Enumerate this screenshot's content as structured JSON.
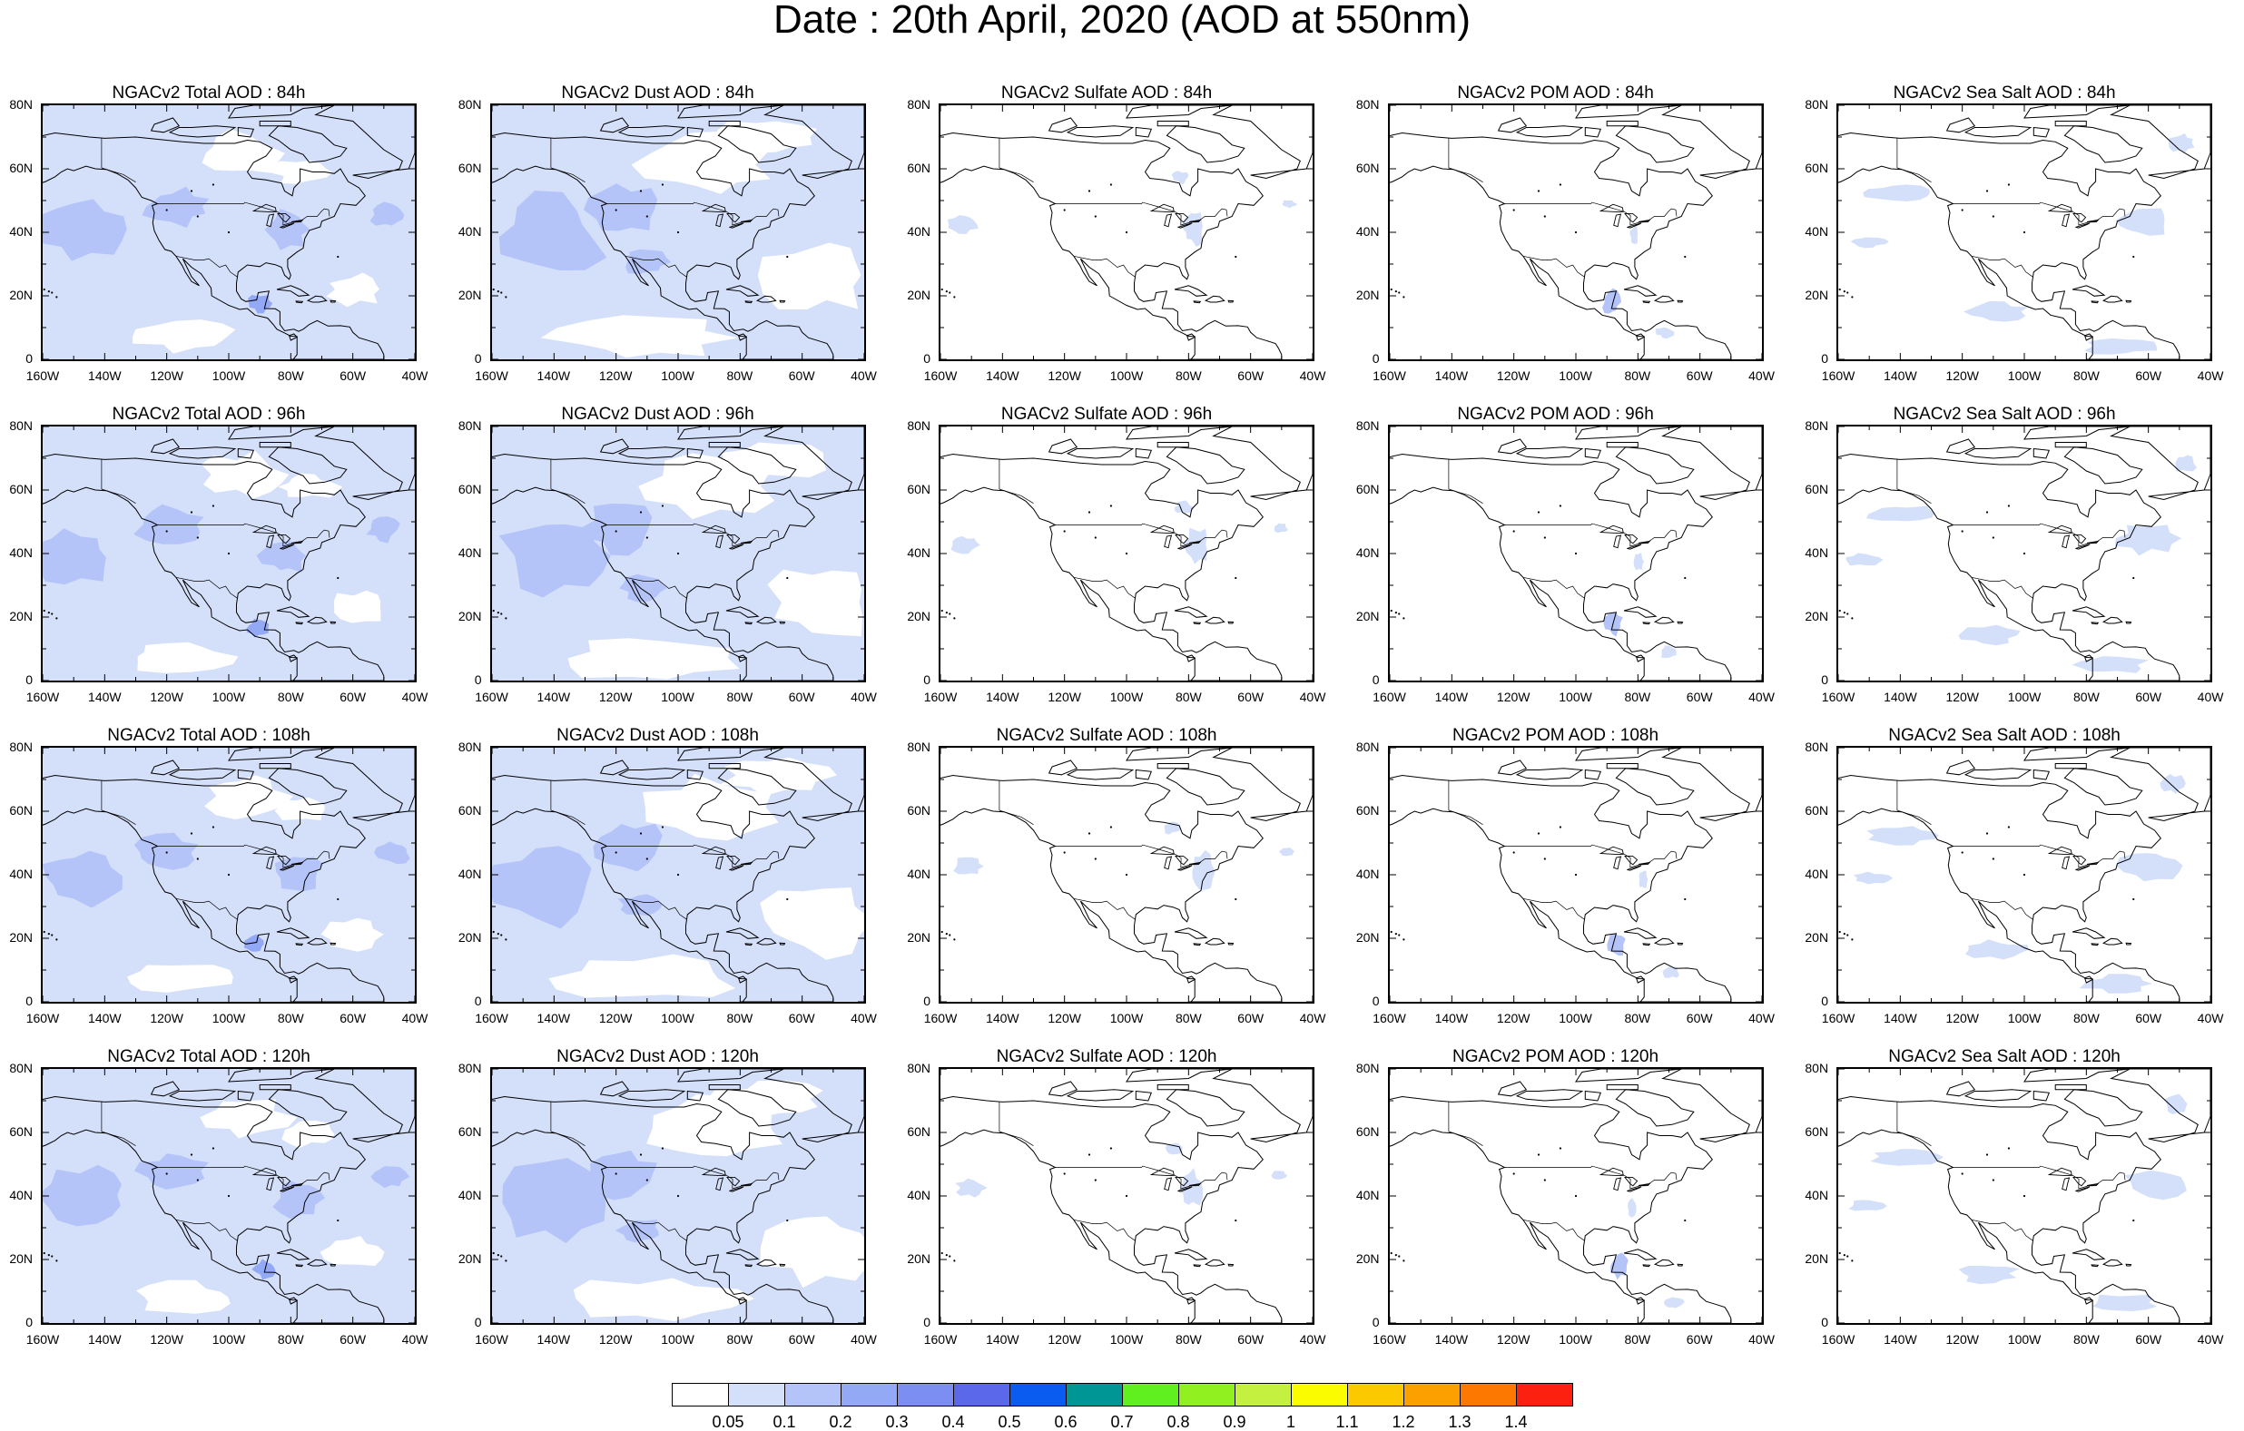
{
  "title": "Date : 20th April, 2020 (AOD at 550nm)",
  "lat_labels": [
    "80N",
    "60N",
    "40N",
    "20N",
    "0"
  ],
  "lon_labels": [
    "160W",
    "140W",
    "120W",
    "100W",
    "80W",
    "60W",
    "40W"
  ],
  "panels": [
    {
      "title": "NGACv2 Total AOD : 84h",
      "species": "total",
      "lead": 84
    },
    {
      "title": "NGACv2 Dust AOD : 84h",
      "species": "dust",
      "lead": 84
    },
    {
      "title": "NGACv2 Sulfate AOD : 84h",
      "species": "sulfate",
      "lead": 84
    },
    {
      "title": "NGACv2 POM AOD : 84h",
      "species": "pom",
      "lead": 84
    },
    {
      "title": "NGACv2 Sea Salt AOD : 84h",
      "species": "seasalt",
      "lead": 84
    },
    {
      "title": "NGACv2 Total AOD : 96h",
      "species": "total",
      "lead": 96
    },
    {
      "title": "NGACv2 Dust AOD : 96h",
      "species": "dust",
      "lead": 96
    },
    {
      "title": "NGACv2 Sulfate AOD : 96h",
      "species": "sulfate",
      "lead": 96
    },
    {
      "title": "NGACv2 POM AOD : 96h",
      "species": "pom",
      "lead": 96
    },
    {
      "title": "NGACv2 Sea Salt AOD : 96h",
      "species": "seasalt",
      "lead": 96
    },
    {
      "title": "NGACv2 Total AOD : 108h",
      "species": "total",
      "lead": 108
    },
    {
      "title": "NGACv2 Dust AOD : 108h",
      "species": "dust",
      "lead": 108
    },
    {
      "title": "NGACv2 Sulfate AOD : 108h",
      "species": "sulfate",
      "lead": 108
    },
    {
      "title": "NGACv2 POM AOD : 108h",
      "species": "pom",
      "lead": 108
    },
    {
      "title": "NGACv2 Sea Salt AOD : 108h",
      "species": "seasalt",
      "lead": 108
    },
    {
      "title": "NGACv2 Total AOD : 120h",
      "species": "total",
      "lead": 120
    },
    {
      "title": "NGACv2 Dust AOD : 120h",
      "species": "dust",
      "lead": 120
    },
    {
      "title": "NGACv2 Sulfate AOD : 120h",
      "species": "sulfate",
      "lead": 120
    },
    {
      "title": "NGACv2 POM AOD : 120h",
      "species": "pom",
      "lead": 120
    },
    {
      "title": "NGACv2 Sea Salt  AOD : 120h",
      "species": "seasalt",
      "lead": 120
    }
  ],
  "colorbar": {
    "colors": [
      "#ffffff",
      "#d4dffa",
      "#b4c4f8",
      "#93a9f6",
      "#7c8ef2",
      "#5c68ea",
      "#0a5cf0",
      "#009696",
      "#60f020",
      "#90f020",
      "#c4f040",
      "#fcfc00",
      "#fcc800",
      "#fca000",
      "#fc7800",
      "#fc2010"
    ],
    "labels": [
      "0.05",
      "0.1",
      "0.2",
      "0.3",
      "0.4",
      "0.5",
      "0.6",
      "0.7",
      "0.8",
      "0.9",
      "1",
      "1.1",
      "1.2",
      "1.3",
      "1.4"
    ]
  }
}
